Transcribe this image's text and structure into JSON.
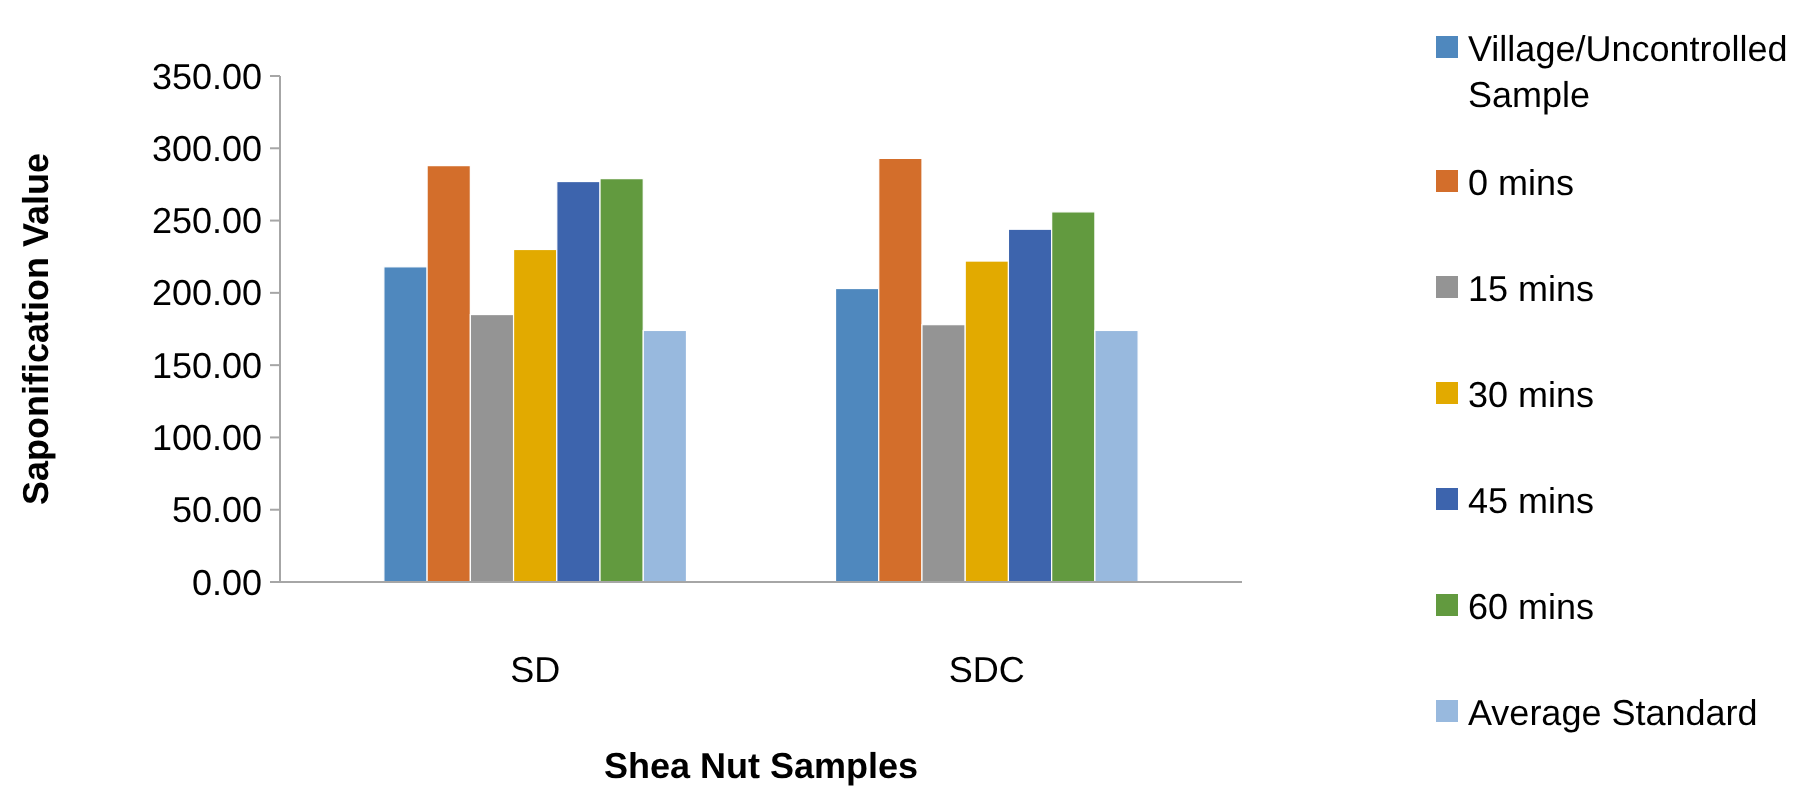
{
  "chart_data": {
    "type": "bar",
    "xlabel": "Shea Nut Samples",
    "ylabel": "Saponification Value",
    "categories": [
      "SD",
      "SDC"
    ],
    "series": [
      {
        "name": "Village/Uncontrolled Sample",
        "color": "#4f88be",
        "values": [
          218,
          203
        ]
      },
      {
        "name": "0 mins",
        "color": "#d36e2b",
        "values": [
          288,
          293
        ]
      },
      {
        "name": "15 mins",
        "color": "#949494",
        "values": [
          185,
          178
        ]
      },
      {
        "name": "30 mins",
        "color": "#e2aa00",
        "values": [
          230,
          222
        ]
      },
      {
        "name": "45 mins",
        "color": "#3d64ad",
        "values": [
          277,
          244
        ]
      },
      {
        "name": "60 mins",
        "color": "#629a3f",
        "values": [
          279,
          256
        ]
      },
      {
        "name": "Average Standard",
        "color": "#98b9de",
        "values": [
          174,
          174
        ]
      }
    ],
    "ylim": [
      0,
      350
    ],
    "yticks": [
      {
        "value": 0,
        "label": "0.00"
      },
      {
        "value": 50,
        "label": "50.00"
      },
      {
        "value": 100,
        "label": "100.00"
      },
      {
        "value": 150,
        "label": "150.00"
      },
      {
        "value": 200,
        "label": "200.00"
      },
      {
        "value": 250,
        "label": "250.00"
      },
      {
        "value": 300,
        "label": "300.00"
      },
      {
        "value": 350,
        "label": "350.00"
      }
    ],
    "grid": false,
    "legend": "right"
  }
}
